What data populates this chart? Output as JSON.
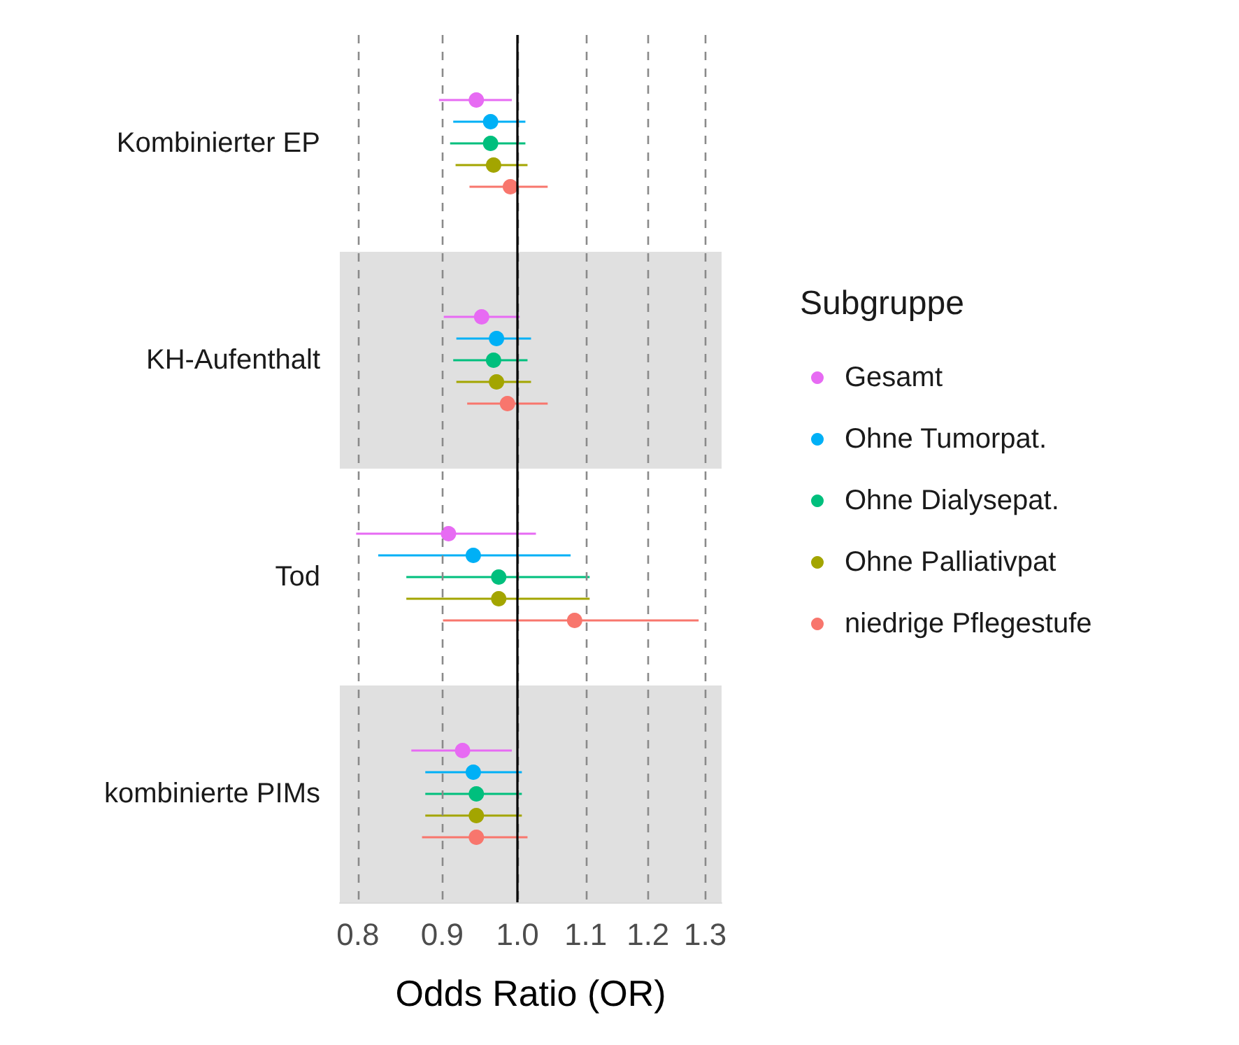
{
  "chart_data": {
    "type": "scatter",
    "orientation": "horizontal",
    "categories": [
      "Kombinierter EP",
      "KH-Aufenthalt",
      "Tod",
      "kombinierte PIMs"
    ],
    "xlabel": "Odds Ratio (OR)",
    "legend_title": "Subgruppe",
    "log": "x",
    "xlim": [
      0.78,
      1.33
    ],
    "xticks": [
      0.8,
      0.9,
      {
        "value": 1,
        "label": "1.0"
      },
      1.1,
      1.2,
      1.3
    ],
    "grid": "x",
    "legend": "right",
    "marker": "circle",
    "ref_lines": [
      {
        "axis": "x",
        "value": 1,
        "color": "#000000"
      }
    ],
    "bands": [
      {
        "axis": "y",
        "from": "KH-Aufenthalt",
        "to": "KH-Aufenthalt",
        "color": "#e0e0e0"
      },
      {
        "axis": "y",
        "from": "kombinierte PIMs",
        "to": "kombinierte PIMs",
        "color": "#e0e0e0"
      }
    ],
    "series": [
      {
        "name": "Gesamt",
        "color": "#e76bf3",
        "values": [
          0.944,
          0.951,
          0.908,
          0.926
        ],
        "errors": [
          [
            0.896,
            0.992
          ],
          [
            0.902,
            1.003
          ],
          [
            0.798,
            1.026
          ],
          [
            0.862,
            0.992
          ]
        ]
      },
      {
        "name": "Ohne Tumorpat.",
        "color": "#00b0f6",
        "values": [
          0.963,
          0.971,
          0.94,
          0.94
        ],
        "errors": [
          [
            0.914,
            1.011
          ],
          [
            0.918,
            1.019
          ],
          [
            0.823,
            1.077
          ],
          [
            0.879,
            1.006
          ]
        ]
      },
      {
        "name": "Ohne Dialysepat.",
        "color": "#00bf7d",
        "values": [
          0.963,
          0.967,
          0.974,
          0.944
        ],
        "errors": [
          [
            0.91,
            1.011
          ],
          [
            0.914,
            1.014
          ],
          [
            0.856,
            1.106
          ],
          [
            0.879,
            1.006
          ]
        ]
      },
      {
        "name": "Ohne Palliativpat",
        "color": "#a3a500",
        "values": [
          0.967,
          0.971,
          0.974,
          0.944
        ],
        "errors": [
          [
            0.917,
            1.014
          ],
          [
            0.918,
            1.019
          ],
          [
            0.856,
            1.106
          ],
          [
            0.879,
            1.006
          ]
        ]
      },
      {
        "name": "niedrige Pflegestufe",
        "color": "#f8766d",
        "values": [
          0.99,
          0.986,
          1.083,
          0.944
        ],
        "errors": [
          [
            0.935,
            1.043
          ],
          [
            0.932,
            1.043
          ],
          [
            0.901,
            1.288
          ],
          [
            0.875,
            1.014
          ]
        ]
      }
    ]
  }
}
